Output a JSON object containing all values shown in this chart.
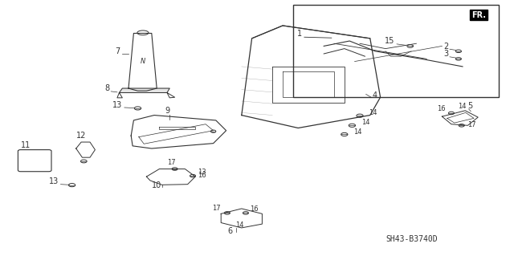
{
  "title": "",
  "bg_color": "#ffffff",
  "line_color": "#333333",
  "part_numbers": [
    1,
    2,
    3,
    4,
    5,
    6,
    7,
    8,
    9,
    10,
    11,
    12,
    13,
    14,
    15,
    16,
    17
  ],
  "diagram_code": "SH43-B3740D",
  "fr_label": "FR.",
  "fig_width": 6.4,
  "fig_height": 3.19,
  "dpi": 100,
  "font_size_labels": 7,
  "font_size_code": 7
}
